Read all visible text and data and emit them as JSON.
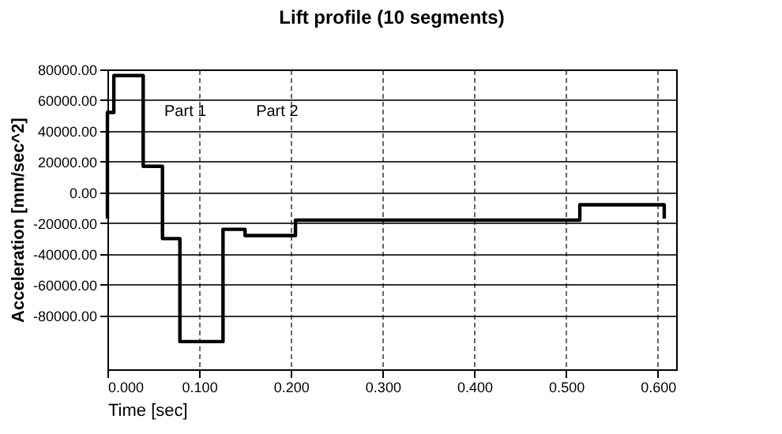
{
  "chart_data": {
    "type": "step",
    "title": "Lift profile (10 segments)",
    "xlabel": "Time [sec]",
    "ylabel": "Acceleration [mm/sec^2]",
    "x": [
      0,
      0,
      0.007,
      0.039,
      0.06,
      0.079,
      0.126,
      0.15,
      0.205,
      0.515,
      0.607
    ],
    "series": [
      {
        "color": "#000000",
        "values": [
          -17000,
          52000,
          76000,
          17000,
          -30000,
          -97000,
          -24000,
          -28000,
          -18000,
          -8000,
          -17000
        ]
      }
    ],
    "xlim": [
      0,
      0.62
    ],
    "ylim": [
      -115000,
      80000
    ],
    "xticks": [
      {
        "value": 0,
        "label": "0.000"
      },
      {
        "value": 0.1,
        "label": "0.100"
      },
      {
        "value": 0.2,
        "label": "0.200"
      },
      {
        "value": 0.3,
        "label": "0.300"
      },
      {
        "value": 0.4,
        "label": "0.400"
      },
      {
        "value": 0.5,
        "label": "0.500"
      },
      {
        "value": 0.6,
        "label": "0.600"
      }
    ],
    "yticks": [
      {
        "value": 80000,
        "label": "80000.00"
      },
      {
        "value": 60000,
        "label": "60000.00"
      },
      {
        "value": 40000,
        "label": "40000.00"
      },
      {
        "value": 20000,
        "label": "20000.00"
      },
      {
        "value": 0,
        "label": "0.00"
      },
      {
        "value": -20000,
        "label": "-20000.00"
      },
      {
        "value": -40000,
        "label": "-40000.00"
      },
      {
        "value": -60000,
        "label": "-60000.00"
      },
      {
        "value": -80000,
        "label": "-80000.00"
      }
    ],
    "annotations": [
      "Part 1",
      "Part 2"
    ],
    "grid": true,
    "line_style": "solid"
  }
}
